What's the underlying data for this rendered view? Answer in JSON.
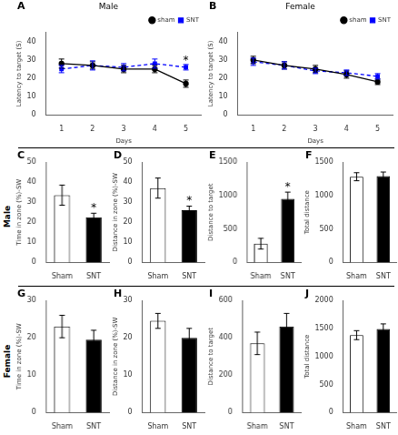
{
  "chart_data": [
    {
      "type": "line",
      "title": "Male",
      "x": [
        1,
        2,
        3,
        4,
        5
      ],
      "x_label": "Days",
      "y_label": "Latency to target (S)",
      "xlim": [
        0.5,
        5.5
      ],
      "xticks": [
        1,
        2,
        3,
        4,
        5
      ],
      "ylim": [
        0,
        45
      ],
      "yticks": [
        0,
        10,
        20,
        30,
        40
      ],
      "grid": false,
      "legend": "upper right",
      "series": [
        {
          "name": "sham",
          "color": "#000000",
          "marker": "circle",
          "line_style": "solid",
          "values": [
            28,
            27,
            25,
            25,
            17
          ],
          "errors": [
            2.5,
            2,
            2,
            2,
            2
          ]
        },
        {
          "name": "SNT",
          "color": "#0000ff",
          "marker": "square",
          "line_style": "dashed",
          "values": [
            25,
            27,
            26,
            28,
            26
          ],
          "errors": [
            2,
            2.5,
            2,
            2.5,
            1.5
          ]
        }
      ],
      "annotations": [
        {
          "text": "A",
          "position": "corner"
        },
        {
          "text": "*",
          "x": 5,
          "y": 28
        }
      ]
    },
    {
      "type": "line",
      "title": "Female",
      "x": [
        1,
        2,
        3,
        4,
        5
      ],
      "x_label": "Days",
      "y_label": "Latency to target (S)",
      "xlim": [
        0.5,
        5.5
      ],
      "xticks": [
        1,
        2,
        3,
        4,
        5
      ],
      "ylim": [
        0,
        45
      ],
      "yticks": [
        0,
        10,
        20,
        30,
        40
      ],
      "grid": false,
      "legend": "upper right",
      "series": [
        {
          "name": "sham",
          "color": "#000000",
          "marker": "circle",
          "line_style": "solid",
          "values": [
            30,
            27,
            25,
            22,
            18
          ],
          "errors": [
            2,
            2,
            2,
            2,
            1.5
          ]
        },
        {
          "name": "SNT",
          "color": "#0000ff",
          "marker": "square",
          "line_style": "dashed",
          "values": [
            29,
            27,
            24,
            23,
            21
          ],
          "errors": [
            2,
            2,
            1.5,
            1.5,
            1.5
          ]
        }
      ],
      "annotations": [
        {
          "text": "B",
          "position": "corner"
        }
      ]
    },
    {
      "type": "bar",
      "categories": [
        "Sham",
        "SNT"
      ],
      "values": [
        33.5,
        22.5
      ],
      "errors": [
        5,
        2
      ],
      "colors": [
        "#ffffff",
        "#000000"
      ],
      "y_label": "Time in zone (%)-SW",
      "ylim": [
        0,
        50
      ],
      "yticks": [
        0,
        10,
        20,
        30,
        40,
        50
      ],
      "grid": false,
      "annotations": [
        {
          "text": "C",
          "position": "corner"
        },
        {
          "text": "Male",
          "position": "row"
        },
        {
          "text": "*",
          "x": "SNT",
          "y": 25.5
        }
      ]
    },
    {
      "type": "bar",
      "categories": [
        "Sham",
        "SNT"
      ],
      "values": [
        37,
        26
      ],
      "errors": [
        5,
        2
      ],
      "colors": [
        "#ffffff",
        "#000000"
      ],
      "y_label": "Distance in zone (%)-SW",
      "ylim": [
        0,
        50
      ],
      "yticks": [
        0,
        10,
        20,
        30,
        40,
        50
      ],
      "grid": false,
      "annotations": [
        {
          "text": "D",
          "position": "corner"
        },
        {
          "text": "*",
          "x": "SNT",
          "y": 29
        }
      ]
    },
    {
      "type": "bar",
      "categories": [
        "Sham",
        "SNT"
      ],
      "values": [
        280,
        950
      ],
      "errors": [
        80,
        100
      ],
      "colors": [
        "#ffffff",
        "#000000"
      ],
      "y_label": "Distance to target",
      "ylim": [
        0,
        1500
      ],
      "yticks": [
        0,
        500,
        1000,
        1500
      ],
      "grid": false,
      "annotations": [
        {
          "text": "E",
          "position": "corner"
        },
        {
          "text": "*",
          "x": "SNT",
          "y": 1080
        }
      ]
    },
    {
      "type": "bar",
      "categories": [
        "Sham",
        "SNT"
      ],
      "values": [
        1280,
        1290
      ],
      "errors": [
        60,
        60
      ],
      "colors": [
        "#ffffff",
        "#000000"
      ],
      "y_label": "Total distance",
      "ylim": [
        0,
        1500
      ],
      "yticks": [
        0,
        500,
        1000,
        1500
      ],
      "grid": false,
      "annotations": [
        {
          "text": "F",
          "position": "corner"
        }
      ]
    },
    {
      "type": "bar",
      "categories": [
        "Sham",
        "SNT"
      ],
      "values": [
        23,
        19.5
      ],
      "errors": [
        3,
        2.5
      ],
      "colors": [
        "#ffffff",
        "#000000"
      ],
      "y_label": "Time in zone (%)-SW",
      "ylim": [
        0,
        30
      ],
      "yticks": [
        0,
        10,
        20,
        30
      ],
      "grid": false,
      "annotations": [
        {
          "text": "G",
          "position": "corner"
        },
        {
          "text": "Female",
          "position": "row"
        }
      ]
    },
    {
      "type": "bar",
      "categories": [
        "Sham",
        "SNT"
      ],
      "values": [
        24.5,
        20
      ],
      "errors": [
        2,
        2.5
      ],
      "colors": [
        "#ffffff",
        "#000000"
      ],
      "y_label": "Distance in zone (%)-SW",
      "ylim": [
        0,
        30
      ],
      "yticks": [
        0,
        10,
        20,
        30
      ],
      "grid": false,
      "annotations": [
        {
          "text": "H",
          "position": "corner"
        }
      ]
    },
    {
      "type": "bar",
      "categories": [
        "Sham",
        "SNT"
      ],
      "values": [
        370,
        460
      ],
      "errors": [
        60,
        70
      ],
      "colors": [
        "#ffffff",
        "#000000"
      ],
      "y_label": "Distance to target",
      "ylim": [
        0,
        600
      ],
      "yticks": [
        0,
        200,
        400,
        600
      ],
      "grid": false,
      "annotations": [
        {
          "text": "I",
          "position": "corner"
        }
      ]
    },
    {
      "type": "bar",
      "categories": [
        "Sham",
        "SNT"
      ],
      "values": [
        1380,
        1490
      ],
      "errors": [
        80,
        90
      ],
      "colors": [
        "#ffffff",
        "#000000"
      ],
      "y_label": "Total distance",
      "ylim": [
        0,
        2000
      ],
      "yticks": [
        0,
        500,
        1000,
        1500,
        2000
      ],
      "grid": false,
      "annotations": [
        {
          "text": "J",
          "position": "corner"
        }
      ]
    }
  ]
}
